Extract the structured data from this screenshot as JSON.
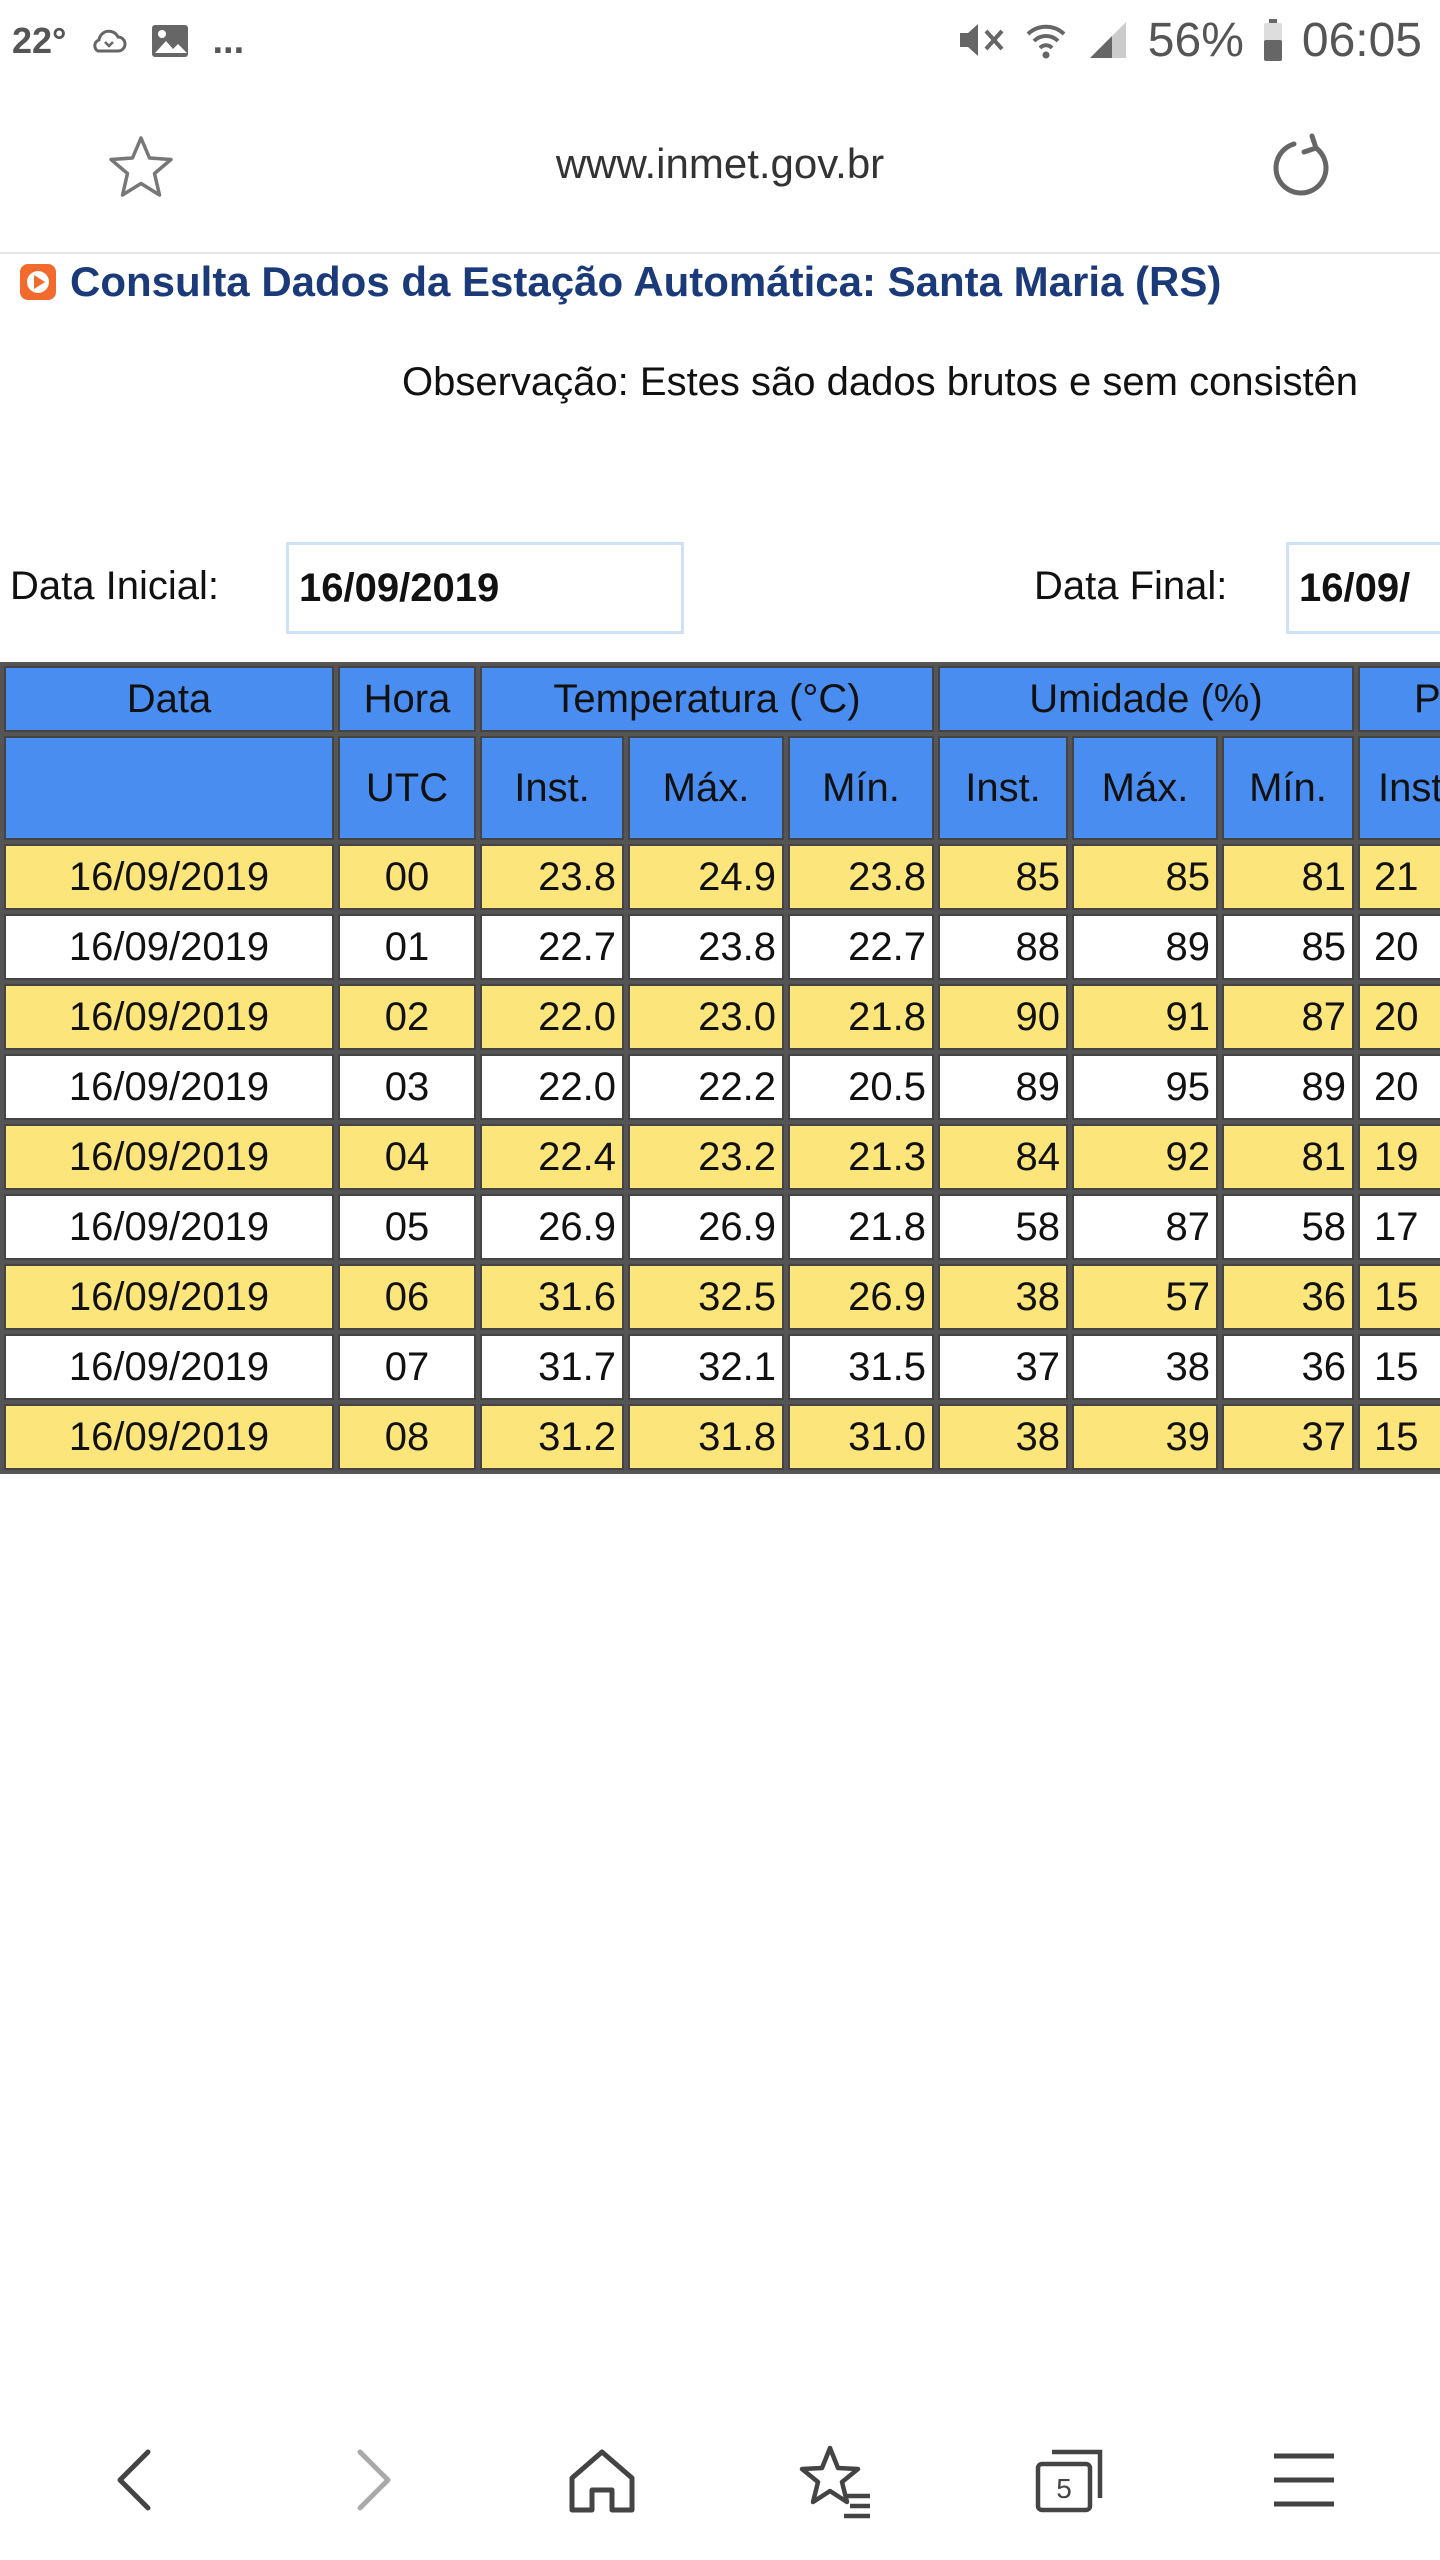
{
  "status_bar": {
    "temperature": "22°",
    "ellipsis": "...",
    "battery": "56%",
    "time": "06:05"
  },
  "address_bar": {
    "url": "www.inmet.gov.br"
  },
  "page": {
    "title": "Consulta Dados da Estação Automática: Santa Maria (RS)",
    "observation": "Observação: Estes são dados brutos e sem consistên",
    "data_inicial_label": "Data Inicial:",
    "data_inicial_value": "16/09/2019",
    "data_final_label": "Data Final:",
    "data_final_value": "16/09/"
  },
  "table": {
    "group_headers": [
      "Data",
      "Hora",
      "Temperatura (°C)",
      "Umidade (%)",
      "P"
    ],
    "sub_headers": [
      "",
      "UTC",
      "Inst.",
      "Máx.",
      "Mín.",
      "Inst.",
      "Máx.",
      "Mín.",
      "Inst"
    ],
    "rows": [
      {
        "data": "16/09/2019",
        "hora": "00",
        "temp_inst": "23.8",
        "temp_max": "24.9",
        "temp_min": "23.8",
        "umid_inst": "85",
        "umid_max": "85",
        "umid_min": "81",
        "p_inst": "21"
      },
      {
        "data": "16/09/2019",
        "hora": "01",
        "temp_inst": "22.7",
        "temp_max": "23.8",
        "temp_min": "22.7",
        "umid_inst": "88",
        "umid_max": "89",
        "umid_min": "85",
        "p_inst": "20"
      },
      {
        "data": "16/09/2019",
        "hora": "02",
        "temp_inst": "22.0",
        "temp_max": "23.0",
        "temp_min": "21.8",
        "umid_inst": "90",
        "umid_max": "91",
        "umid_min": "87",
        "p_inst": "20"
      },
      {
        "data": "16/09/2019",
        "hora": "03",
        "temp_inst": "22.0",
        "temp_max": "22.2",
        "temp_min": "20.5",
        "umid_inst": "89",
        "umid_max": "95",
        "umid_min": "89",
        "p_inst": "20"
      },
      {
        "data": "16/09/2019",
        "hora": "04",
        "temp_inst": "22.4",
        "temp_max": "23.2",
        "temp_min": "21.3",
        "umid_inst": "84",
        "umid_max": "92",
        "umid_min": "81",
        "p_inst": "19"
      },
      {
        "data": "16/09/2019",
        "hora": "05",
        "temp_inst": "26.9",
        "temp_max": "26.9",
        "temp_min": "21.8",
        "umid_inst": "58",
        "umid_max": "87",
        "umid_min": "58",
        "p_inst": "17"
      },
      {
        "data": "16/09/2019",
        "hora": "06",
        "temp_inst": "31.6",
        "temp_max": "32.5",
        "temp_min": "26.9",
        "umid_inst": "38",
        "umid_max": "57",
        "umid_min": "36",
        "p_inst": "15"
      },
      {
        "data": "16/09/2019",
        "hora": "07",
        "temp_inst": "31.7",
        "temp_max": "32.1",
        "temp_min": "31.5",
        "umid_inst": "37",
        "umid_max": "38",
        "umid_min": "36",
        "p_inst": "15"
      },
      {
        "data": "16/09/2019",
        "hora": "08",
        "temp_inst": "31.2",
        "temp_max": "31.8",
        "temp_min": "31.0",
        "umid_inst": "38",
        "umid_max": "39",
        "umid_min": "37",
        "p_inst": "15"
      }
    ]
  },
  "bottom_nav": {
    "tabs_count": "5"
  },
  "colors": {
    "header_blue": "#4a8df0",
    "row_yellow": "#fce57a",
    "title_blue": "#1a3a7a"
  }
}
